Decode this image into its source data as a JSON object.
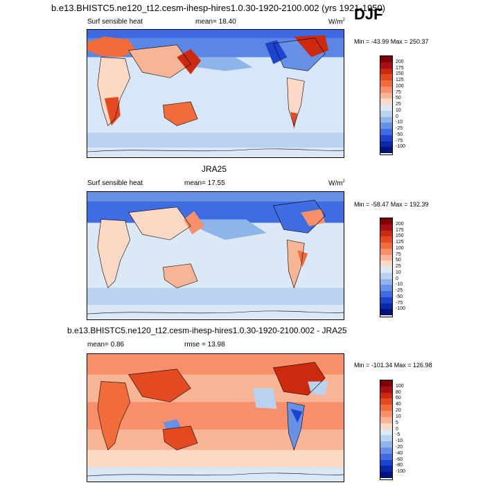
{
  "figure": {
    "title": "b.e13.BHISTC5.ne120_t12.cesm-ihesp-hires1.0.30-1920-2100.002 (yrs 1921-1950)",
    "season": "DJF"
  },
  "panels": [
    {
      "id": "model",
      "heading": "",
      "left_label": "Surf sensible heat",
      "center_label": "mean=  18.40",
      "units": "W/m",
      "units_sup": "2",
      "minmax": "Min = -43.99 Max = 250.37",
      "colorbar": {
        "labels": [
          "200",
          "175",
          "150",
          "125",
          "100",
          "75",
          "50",
          "25",
          "10",
          "0",
          "-10",
          "-25",
          "-50",
          "-75",
          "-100"
        ],
        "colors": [
          "#7f0000",
          "#a50f15",
          "#cb2a0e",
          "#e34a1f",
          "#f26b3a",
          "#f7906a",
          "#f8b595",
          "#fbd9c4",
          "#dbe8f6",
          "#b9d2f0",
          "#8fb4ea",
          "#6691e6",
          "#3f6ce0",
          "#1c44cf",
          "#0a28a8",
          "#00137a"
        ]
      }
    },
    {
      "id": "obs",
      "heading": "JRA25",
      "left_label": "Surf sensible heat",
      "center_label": "mean=  17.55",
      "units": "W/m",
      "units_sup": "2",
      "minmax": "Min = -58.47 Max = 192.39",
      "colorbar": {
        "labels": [
          "200",
          "175",
          "150",
          "125",
          "100",
          "75",
          "50",
          "25",
          "10",
          "0",
          "-10",
          "-25",
          "-50",
          "-75",
          "-100"
        ],
        "colors": [
          "#7f0000",
          "#a50f15",
          "#cb2a0e",
          "#e34a1f",
          "#f26b3a",
          "#f7906a",
          "#f8b595",
          "#fbd9c4",
          "#dbe8f6",
          "#b9d2f0",
          "#8fb4ea",
          "#6691e6",
          "#3f6ce0",
          "#1c44cf",
          "#0a28a8",
          "#00137a"
        ]
      }
    },
    {
      "id": "diff",
      "heading": "b.e13.BHISTC5.ne120_t12.cesm-ihesp-hires1.0.30-1920-2100.002 - JRA25",
      "left_label": "mean=  0.86",
      "center_label": "rmse =  13.98",
      "units": "",
      "units_sup": "",
      "minmax": "Min = -101.34 Max = 126.98",
      "colorbar": {
        "labels": [
          "100",
          "80",
          "60",
          "40",
          "20",
          "10",
          "5",
          "0",
          "-5",
          "-10",
          "-20",
          "-40",
          "-60",
          "-80",
          "-100"
        ],
        "colors": [
          "#7f0000",
          "#a50f15",
          "#cb2a0e",
          "#e34a1f",
          "#f26b3a",
          "#f7906a",
          "#f8b595",
          "#fbd9c4",
          "#dbe8f6",
          "#b9d2f0",
          "#8fb4ea",
          "#6691e6",
          "#3f6ce0",
          "#1c44cf",
          "#0a28a8",
          "#00137a"
        ]
      }
    }
  ]
}
